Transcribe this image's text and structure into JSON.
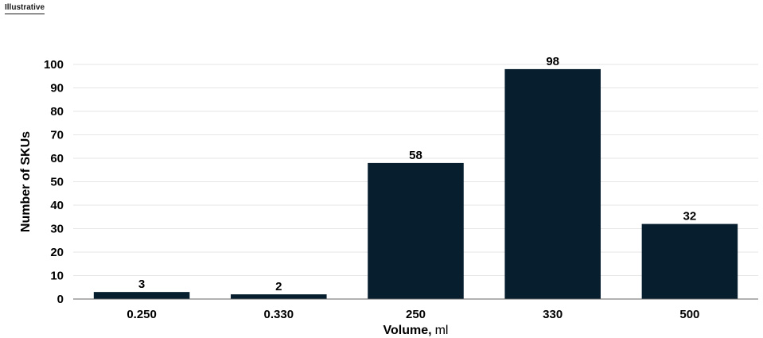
{
  "tag": "Illustrative",
  "chart_data": {
    "type": "bar",
    "categories": [
      "0.250",
      "0.330",
      "250",
      "330",
      "500"
    ],
    "values": [
      3,
      2,
      58,
      98,
      32
    ],
    "ylabel": "Number of SKUs",
    "xlabel": "Volume,",
    "xlabel_unit": "ml",
    "ylim": [
      0,
      100
    ],
    "yticks": [
      0,
      10,
      20,
      30,
      40,
      50,
      60,
      70,
      80,
      90,
      100
    ],
    "grid": true,
    "bar_color": "#071e2e",
    "grid_color": "#e6e6e6"
  }
}
